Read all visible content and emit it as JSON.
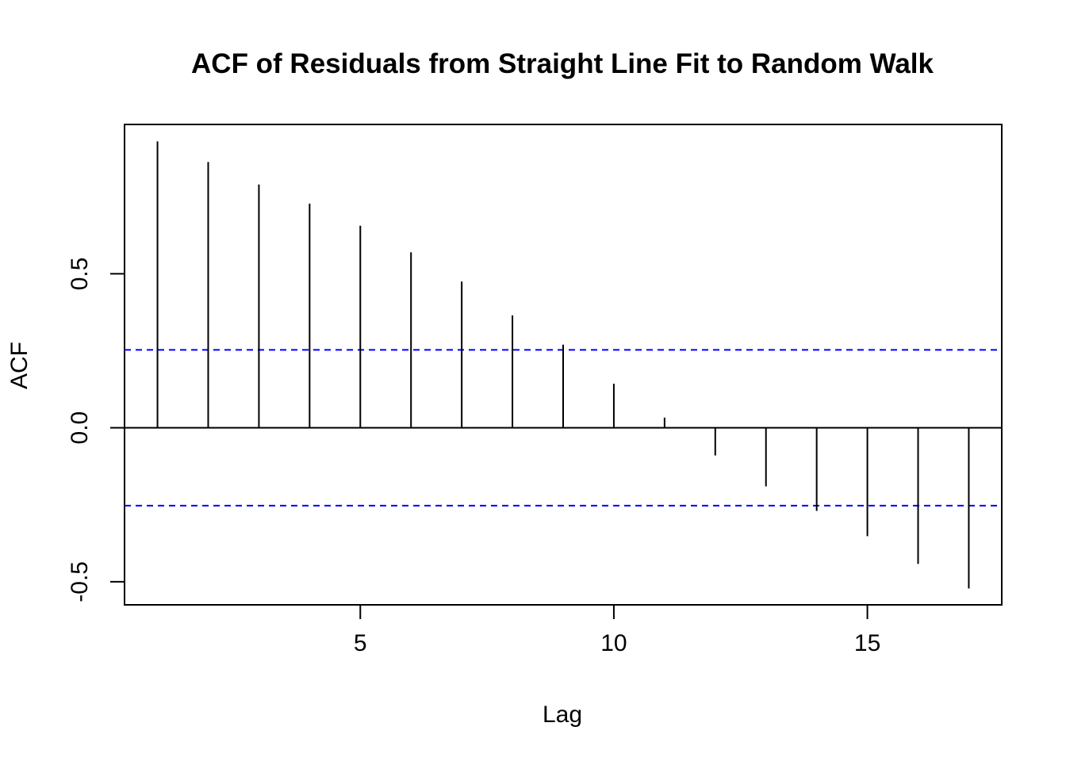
{
  "chart_data": {
    "type": "bar",
    "subtype": "acf-spike",
    "title": "ACF of Residuals from Straight Line Fit to Random Walk",
    "xlabel": "Lag",
    "ylabel": "ACF",
    "x": [
      1,
      2,
      3,
      4,
      5,
      6,
      7,
      8,
      9,
      10,
      11,
      12,
      13,
      14,
      15,
      16,
      17
    ],
    "values": [
      0.93,
      0.863,
      0.79,
      0.728,
      0.656,
      0.57,
      0.475,
      0.365,
      0.27,
      0.143,
      0.033,
      -0.09,
      -0.19,
      -0.27,
      -0.352,
      -0.442,
      -0.522
    ],
    "xlim": [
      0.35,
      17.65
    ],
    "ylim": [
      -0.575,
      0.985
    ],
    "x_ticks": [
      5,
      10,
      15
    ],
    "x_tick_labels": [
      "5",
      "10",
      "15"
    ],
    "y_ticks": [
      -0.5,
      0.0,
      0.5
    ],
    "y_tick_labels": [
      "-0.5",
      "0.0",
      "0.5"
    ],
    "confidence_bounds": [
      0.253,
      -0.253
    ],
    "bound_color": "#0000ff",
    "line_color": "#000000",
    "grid": false,
    "legend": "none"
  }
}
